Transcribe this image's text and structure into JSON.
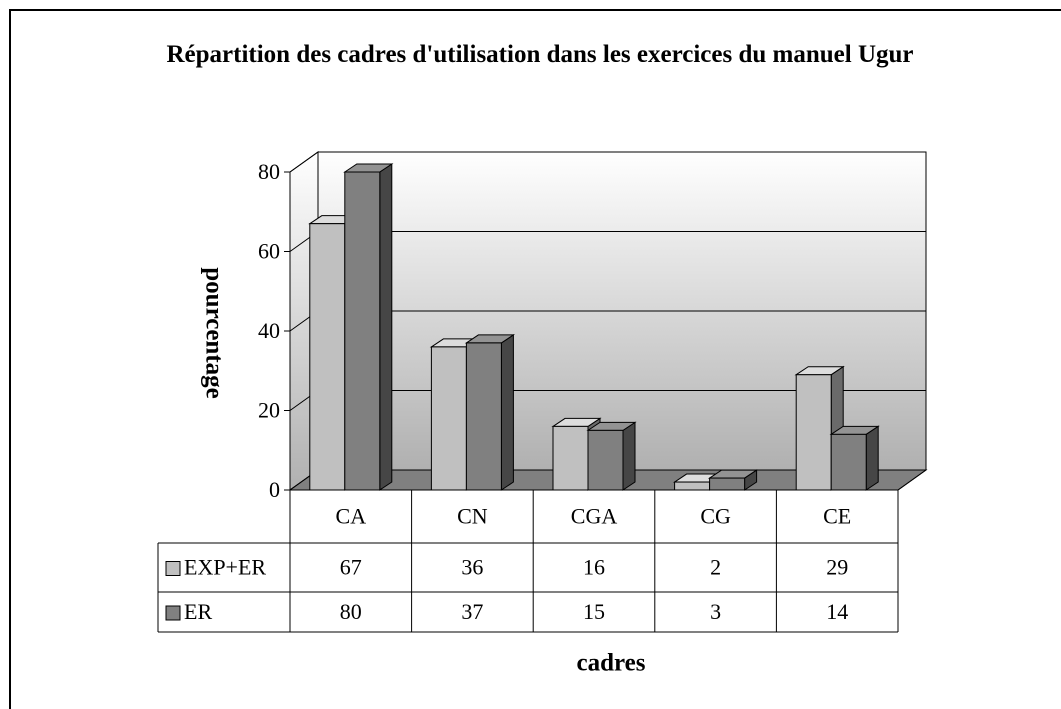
{
  "chart_data": {
    "type": "bar3d",
    "title": "Répartition des cadres d'utilisation dans les exercices du manuel Ugur",
    "y_label": "pourcentage",
    "x_label": "cadres",
    "categories": [
      "CA",
      "CN",
      "CGA",
      "CG",
      "CE"
    ],
    "series": [
      {
        "name": "EXP+ER",
        "color": "#c0c0c0",
        "values": [
          67,
          36,
          16,
          2,
          29
        ]
      },
      {
        "name": "ER",
        "color": "#808080",
        "values": [
          80,
          37,
          15,
          3,
          14
        ]
      }
    ],
    "ylim": [
      0,
      80
    ],
    "yticks": [
      0,
      20,
      40,
      60,
      80
    ],
    "grid": true,
    "data_table": true
  }
}
